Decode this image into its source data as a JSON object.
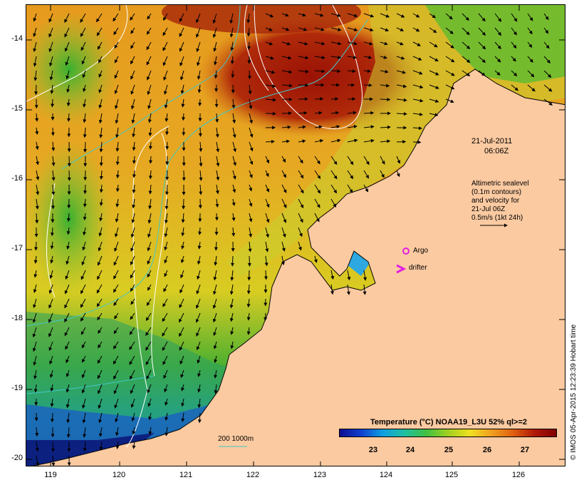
{
  "map": {
    "date_label": "21-Jul-2011",
    "time_label": "06:06Z",
    "altimetry_text": [
      "Altimetric sealevel",
      "(0.1m contours)",
      "and velocity for",
      "21-Jul 06Z",
      "0.5m/s (1kt 24h)"
    ],
    "argo_label": "Argo",
    "drifter_label": "drifter",
    "depth_scale_label": "200  1000m",
    "colorbar_title": "Temperature (°C) NOAA19_L3U 52% ql>=2",
    "colorbar_ticks": [
      "23",
      "24",
      "25",
      "26",
      "27"
    ],
    "side_stamp": "© IMOS 05-Apr-2015 12:23:39 Hobart time",
    "lat_ticks": [
      "-14",
      "-15",
      "-16",
      "-17",
      "-18",
      "-19",
      "-20"
    ],
    "lon_ticks": [
      "119",
      "120",
      "121",
      "122",
      "123",
      "124",
      "125",
      "126"
    ],
    "colors": {
      "land": "#fbcaa1",
      "warm_core": "#a31a06",
      "warm": "#e28a1a",
      "mid": "#e8d028",
      "cool": "#2ea82a",
      "cold": "#1a6ac8",
      "coldest": "#102a8a",
      "argo_marker": "#e020e0",
      "drifter_marker": "#e020e0",
      "depth_contour": "#40c8c8"
    }
  }
}
